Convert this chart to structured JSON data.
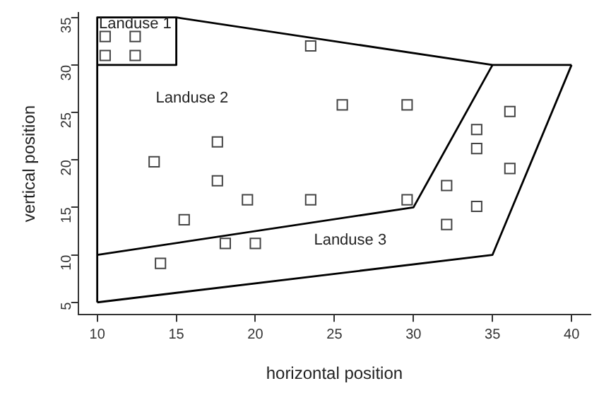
{
  "chart_data": {
    "type": "scatter",
    "xlabel": "horizontal position",
    "ylabel": "vertical position",
    "xlim": [
      8.8,
      41.2
    ],
    "ylim": [
      3.7,
      35.5
    ],
    "xticks": [
      10,
      15,
      20,
      25,
      30,
      35,
      40
    ],
    "yticks": [
      5,
      10,
      15,
      20,
      25,
      30,
      35
    ],
    "grid": false,
    "legend": false,
    "marker": "square",
    "series": [
      {
        "color": "#444444",
        "x": [
          10.5,
          12.4,
          10.5,
          12.4,
          23.5,
          13.6,
          17.6,
          17.6,
          19.5,
          23.5,
          25.5,
          29.6,
          29.6,
          15.5,
          18.1,
          20.0,
          14.0,
          36.1,
          34.0,
          34.0,
          36.1,
          32.1,
          34.0,
          32.1
        ],
        "values": [
          33,
          33,
          31,
          31,
          32,
          19.8,
          21.9,
          17.8,
          15.8,
          15.8,
          25.8,
          25.8,
          15.8,
          13.7,
          11.2,
          11.2,
          9.1,
          25.1,
          23.2,
          21.2,
          19.1,
          17.3,
          15.1,
          13.2
        ]
      },
      {
        "type": "line",
        "color": "#000000",
        "marker": "none",
        "x": [
          10,
          10,
          15,
          35,
          40
        ],
        "values": [
          5,
          35,
          35,
          30,
          30
        ]
      },
      {
        "type": "line",
        "color": "#000000",
        "marker": "none",
        "x": [
          10,
          15,
          15
        ],
        "values": [
          30,
          30,
          35
        ]
      },
      {
        "type": "line",
        "color": "#000000",
        "marker": "none",
        "x": [
          10,
          30,
          35
        ],
        "values": [
          10,
          15,
          30
        ]
      },
      {
        "type": "line",
        "color": "#000000",
        "marker": "none",
        "x": [
          10,
          35,
          40
        ],
        "values": [
          5,
          10,
          30
        ]
      }
    ],
    "annotations": [
      "Landuse 1",
      "Landuse 2",
      "Landuse 3"
    ]
  }
}
